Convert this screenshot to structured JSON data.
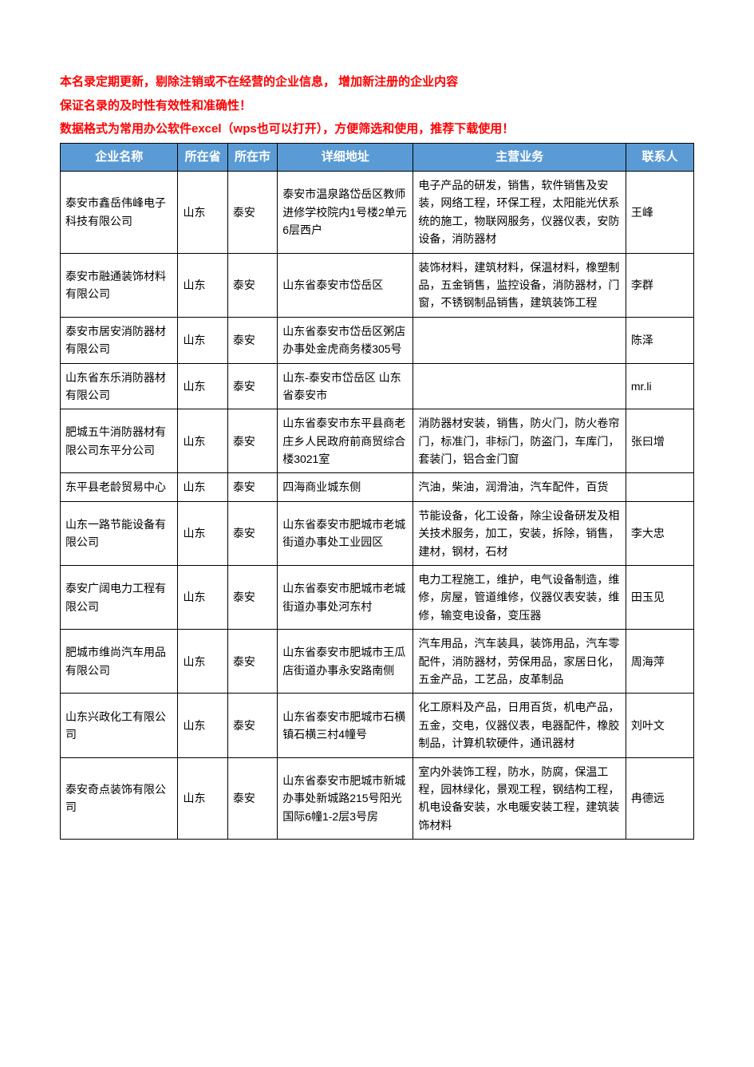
{
  "notices": {
    "line1": "本名录定期更新，剔除注销或不在经营的企业信息， 增加新注册的企业内容",
    "line2": "保证名录的及时性有效性和准确性！",
    "line3": "数据格式为常用办公软件excel（wps也可以打开），方便筛选和使用，推荐下载使用！"
  },
  "table": {
    "headers": {
      "name": "企业名称",
      "province": "所在省",
      "city": "所在市",
      "address": "详细地址",
      "business": "主营业务",
      "contact": "联系人"
    },
    "rows": [
      {
        "name": "泰安市鑫岳伟峰电子科技有限公司",
        "province": "山东",
        "city": "泰安",
        "address": "泰安市温泉路岱岳区教师进修学校院内1号楼2单元6层西户",
        "business": "电子产品的研发，销售，软件销售及安装，网络工程，环保工程，太阳能光伏系统的施工，物联网服务，仪器仪表，安防设备，消防器材",
        "contact": "王峰"
      },
      {
        "name": "泰安市融通装饰材料有限公司",
        "province": "山东",
        "city": "泰安",
        "address": "山东省泰安市岱岳区",
        "business": "装饰材料，建筑材料，保温材料，橡塑制品，五金销售，监控设备，消防器材，门窗，不锈钢制品销售，建筑装饰工程",
        "contact": "李群"
      },
      {
        "name": "泰安市居安消防器材有限公司",
        "province": "山东",
        "city": "泰安",
        "address": "山东省泰安市岱岳区粥店办事处金虎商务楼305号",
        "business": "",
        "contact": "陈泽"
      },
      {
        "name": "山东省东乐消防器材有限公司",
        "province": "山东",
        "city": "泰安",
        "address": "山东-泰安市岱岳区 山东省泰安市",
        "business": "",
        "contact": "mr.li"
      },
      {
        "name": "肥城五牛消防器材有限公司东平分公司",
        "province": "山东",
        "city": "泰安",
        "address": "山东省泰安市东平县商老庄乡人民政府前商贸综合楼3021室",
        "business": "消防器材安装，销售，防火门，防火卷帘门，标准门，非标门，防盗门，车库门，套装门，铝合金门窗",
        "contact": "张曰增"
      },
      {
        "name": "东平县老龄贸易中心",
        "province": "山东",
        "city": "泰安",
        "address": "四海商业城东侧",
        "business": "汽油，柴油，润滑油，汽车配件，百货",
        "contact": ""
      },
      {
        "name": "山东一路节能设备有限公司",
        "province": "山东",
        "city": "泰安",
        "address": "山东省泰安市肥城市老城街道办事处工业园区",
        "business": "节能设备，化工设备，除尘设备研发及相关技术服务，加工，安装，拆除，销售，建材，钢材，石材",
        "contact": "李大忠"
      },
      {
        "name": "泰安广阔电力工程有限公司",
        "province": "山东",
        "city": "泰安",
        "address": "山东省泰安市肥城市老城街道办事处河东村",
        "business": "电力工程施工，维护，电气设备制造，维修，房屋，管道维修，仪器仪表安装，维修，输变电设备，变压器",
        "contact": "田玉见"
      },
      {
        "name": "肥城市维尚汽车用品有限公司",
        "province": "山东",
        "city": "泰安",
        "address": "山东省泰安市肥城市王瓜店街道办事永安路南侧",
        "business": "汽车用品，汽车装具，装饰用品，汽车零配件，消防器材，劳保用品，家居日化，五金产品，工艺品，皮革制品",
        "contact": "周海萍"
      },
      {
        "name": "山东兴政化工有限公司",
        "province": "山东",
        "city": "泰安",
        "address": "山东省泰安市肥城市石横镇石横三村4幢号",
        "business": "化工原料及产品，日用百货，机电产品，五金，交电，仪器仪表，电器配件，橡胶制品，计算机软硬件，通讯器材",
        "contact": "刘叶文"
      },
      {
        "name": "泰安奇点装饰有限公司",
        "province": "山东",
        "city": "泰安",
        "address": "山东省泰安市肥城市新城办事处新城路215号阳光国际6幢1-2层3号房",
        "business": "室内外装饰工程，防水，防腐，保温工程，园林绿化，景观工程，钢结构工程，机电设备安装，水电暖安装工程，建筑装饰材料",
        "contact": "冉德远"
      }
    ]
  }
}
